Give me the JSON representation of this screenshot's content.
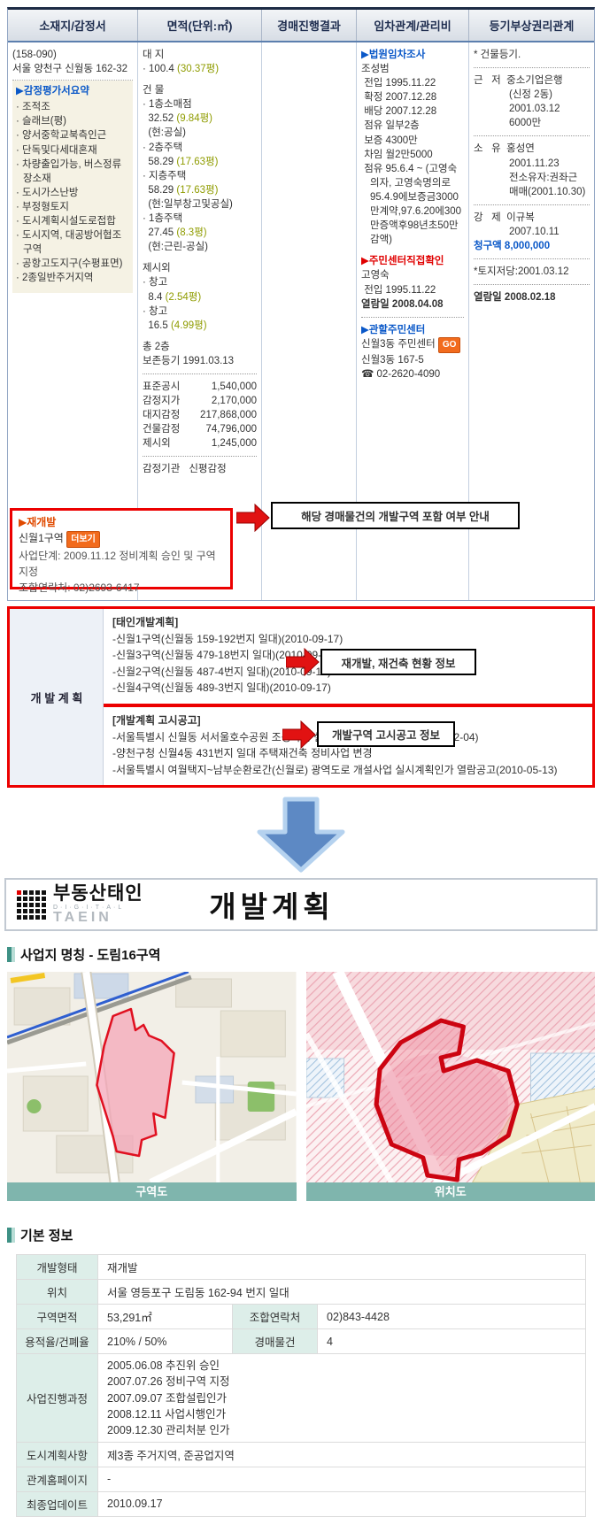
{
  "auction": {
    "headers": [
      "소재지/감정서",
      "면적(단위:㎡)",
      "경매진행결과",
      "임차관계/관리비",
      "등기부상권리관계"
    ],
    "col1": {
      "postal": "(158-090)",
      "address": "서울 양천구 신월동 162-32",
      "summary_title": "▶감정평가서요약",
      "summary_items": [
        "조적조",
        "슬래브(평)",
        "양서중학교북측인근",
        "단독및다세대혼재",
        "차량출입가능, 버스정류장소재",
        "도시가스난방",
        "부정형토지",
        "도시계획시설도로접합",
        "도시지역, 대공방어협조구역",
        "공항고도지구(수평표면)",
        "2종일반주거지역"
      ]
    },
    "col2": {
      "lines": [
        {
          "t": "대 지"
        },
        {
          "t": "· 100.4 ",
          "py": "(30.37평)"
        },
        {
          "t": "건 물",
          "c": "gap"
        },
        {
          "t": "· 1층소매점"
        },
        {
          "t": "  32.52 ",
          "py": "(9.84평)"
        },
        {
          "t": "  (현:공실)"
        },
        {
          "t": "· 2층주택"
        },
        {
          "t": "  58.29 ",
          "py": "(17.63평)"
        },
        {
          "t": "· 지층주택"
        },
        {
          "t": "  58.29 ",
          "py": "(17.63평)"
        },
        {
          "t": "  (현:일부창고및공실)"
        },
        {
          "t": "· 1층주택"
        },
        {
          "t": "  27.45 ",
          "py": "(8.3평)"
        },
        {
          "t": "  (현:근린-공실)"
        },
        {
          "t": "제시외",
          "c": "gap"
        },
        {
          "t": "· 창고"
        },
        {
          "t": "  8.4 ",
          "py": "(2.54평)"
        },
        {
          "t": "· 창고"
        },
        {
          "t": "  16.5 ",
          "py": "(4.99평)"
        },
        {
          "t": "총 2층",
          "c": "gap"
        },
        {
          "t": "보존등기 1991.03.13"
        }
      ],
      "prices": [
        {
          "label": "표준공시",
          "value": "1,540,000"
        },
        {
          "label": "감정지가",
          "value": "2,170,000"
        },
        {
          "label": "대지감정",
          "value": "217,868,000"
        },
        {
          "label": "건물감정",
          "value": "74,796,000"
        },
        {
          "label": "제시외",
          "value": "1,245,000"
        }
      ],
      "agency_label": "감정기관",
      "agency_value": "신평감정"
    },
    "col4": {
      "lines": [
        {
          "t": "▶법원임차조사",
          "c": "blue"
        },
        {
          "t": "조성범"
        },
        {
          "t": " 전입 1995.11.22"
        },
        {
          "t": " 확정 2007.12.28"
        },
        {
          "t": " 배당 2007.12.28"
        },
        {
          "t": " 점유 일부2층"
        },
        {
          "t": " 보증 4300만"
        },
        {
          "t": " 차임 월2만5000"
        },
        {
          "t": " 점유 95.6.4 ~ (고영숙의자, 고영숙명의로95.4.9에보증금3000만계약,97.6.20에300만증액후98년초50만감액)"
        },
        {
          "t": "▶주민센터직접확인",
          "c": "red gap"
        },
        {
          "t": "고영숙"
        },
        {
          "t": " 전입 1995.11.22"
        },
        {
          "t": "열람일 2008.04.08",
          "c": "bold"
        },
        {
          "hr": true
        },
        {
          "t": "▶관할주민센터",
          "c": "blue"
        },
        {
          "t": "신월3동 주민센터 ",
          "b": "GO"
        },
        {
          "t": "신월3동 167-5"
        },
        {
          "t": "☎ 02-2620-4090"
        }
      ]
    },
    "col5": {
      "lines": [
        {
          "t": "* 건물등기."
        },
        {
          "hr": true
        },
        {
          "t": "근   저  중소기업은행"
        },
        {
          "t": "(신정 2동)",
          "c": "ind"
        },
        {
          "t": "2001.03.12",
          "c": "ind"
        },
        {
          "t": "6000만",
          "c": "ind"
        },
        {
          "hr": true
        },
        {
          "t": "소   유  홍성연"
        },
        {
          "t": "2001.11.23",
          "c": "ind"
        },
        {
          "t": "전소유자:권좌근",
          "c": "ind"
        },
        {
          "t": "매매(2001.10.30)",
          "c": "ind"
        },
        {
          "hr": true
        },
        {
          "t": "강   제  이규복"
        },
        {
          "t": "2007.10.11",
          "c": "ind"
        },
        {
          "t": "청구액 8,000,000",
          "c": "blue"
        },
        {
          "hr": true
        },
        {
          "t": "*토지저당:2001.03.12"
        },
        {
          "hr": true
        },
        {
          "t": "열람일 2008.02.18",
          "c": "bold"
        }
      ]
    }
  },
  "redev_box": {
    "title": "▶재개발",
    "zone": "신월1구역",
    "more_badge": "더보기",
    "stage": "사업단계: 2009.11.12 정비계획 승인 및 구역지정",
    "contact": "조합연락처: 02)2693-6417"
  },
  "annotations": {
    "box1": "해당 경매물건의 개발구역 포함 여부 안내",
    "box2": "재개발, 재건축 현황 정보",
    "box3": "개발구역 고시공고 정보"
  },
  "dev_plan": {
    "label": "개 발 계 획",
    "section1_title": "[태인개발계획]",
    "section1_items": [
      "-신월1구역(신월동 159-192번지 일대)(2010-09-17)",
      "-신월3구역(신월동 479-18번지 일대)(2010-09-17)",
      "-신월2구역(신월동 487-4번지 일대)(2010-09-17)",
      "-신월4구역(신월동 489-3번지 일대)(2010-09-17)"
    ],
    "section2_title": "[개발계획 고시공고]",
    "section2_items": [
      "-서울특별시 신월동 서서울호수공원 조성사업 실시계획 변경 열람공고(2010-02-04)",
      "-양천구청 신월4동 431번지 일대 주택재건축 정비사업 변경",
      "-서울특별시 여월택지~남부순환로간(신월로) 광역도로 개설사업 실시계획인가 열람공고(2010-05-13)"
    ]
  },
  "banner": {
    "brand": "부동산태인",
    "brand_sub": "D·I·G·I·T·A·L",
    "brand_sub2": "TAEIN",
    "title": "개발계획"
  },
  "site_section": {
    "title": "사업지 명칭 - 도림16구역"
  },
  "maps": {
    "left_caption": "구역도",
    "right_caption": "위치도"
  },
  "basic_info": {
    "title": "기본 정보",
    "rows": [
      {
        "label": "개발형태",
        "value": "재개발"
      },
      {
        "label": "위치",
        "value": "서울 영등포구 도림동 162-94 번지 일대"
      },
      {
        "label": "구역면적",
        "value": "53,291㎡",
        "label2": "조합연락처",
        "value2": "02)843-4428"
      },
      {
        "label": "용적율/건폐율",
        "value": "210% / 50%",
        "label2": "경매물건",
        "value2": "4"
      },
      {
        "label": "사업진행과정",
        "value": "2005.06.08 추진위 승인\n2007.07.26 정비구역 지정\n2007.09.07 조합설립인가\n2008.12.11 사업시행인가\n2009.12.30 관리처분 인가",
        "multi": true
      },
      {
        "label": "도시계획사항",
        "value": "제3종 주거지역, 준공업지역"
      },
      {
        "label": "관계홈페이지",
        "value": "-"
      },
      {
        "label": "최종업데이트",
        "value": "2010.09.17"
      }
    ]
  },
  "colors": {
    "red_accent": "#ec0000",
    "blue_link": "#0a58c8",
    "olive_pyeong": "#8f9c00",
    "teal_caption": "#7fb5ad",
    "orange_badge": "#f26b1d",
    "arrow_blue": "#5d89c4"
  }
}
